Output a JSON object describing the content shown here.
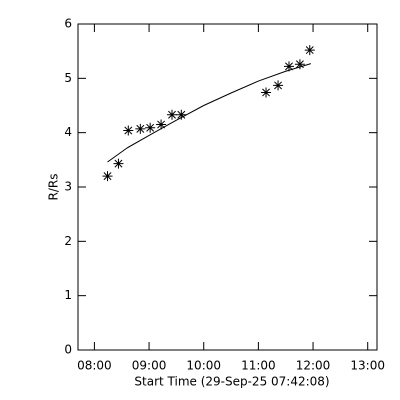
{
  "chart_data": {
    "type": "scatter",
    "xlabel": "Start Time (29-Sep-25 07:42:08)",
    "ylabel": "R/Rs",
    "x": [
      8.24,
      8.44,
      8.62,
      8.84,
      9.02,
      9.22,
      9.42,
      9.59,
      11.14,
      11.36,
      11.56,
      11.76,
      11.94
    ],
    "values": [
      3.2,
      3.43,
      4.04,
      4.07,
      4.09,
      4.15,
      4.33,
      4.33,
      4.74,
      4.87,
      5.22,
      5.26,
      5.52
    ],
    "fit": {
      "x": [
        8.24,
        8.6,
        9.0,
        9.5,
        10.0,
        10.5,
        11.0,
        11.5,
        11.96
      ],
      "values": [
        3.46,
        3.72,
        3.95,
        4.23,
        4.5,
        4.73,
        4.95,
        5.13,
        5.27
      ]
    },
    "color": "#000000",
    "xlim": [
      7.7,
      13.17
    ],
    "xticks": [
      {
        "value": 8,
        "label": "08:00"
      },
      {
        "value": 9,
        "label": "09:00"
      },
      {
        "value": 10,
        "label": "10:00"
      },
      {
        "value": 11,
        "label": "11:00"
      },
      {
        "value": 12,
        "label": "12:00"
      },
      {
        "value": 13,
        "label": "13:00"
      }
    ],
    "ylim": [
      0,
      6
    ],
    "yticks": [
      0,
      1,
      2,
      3,
      4,
      5,
      6
    ]
  }
}
